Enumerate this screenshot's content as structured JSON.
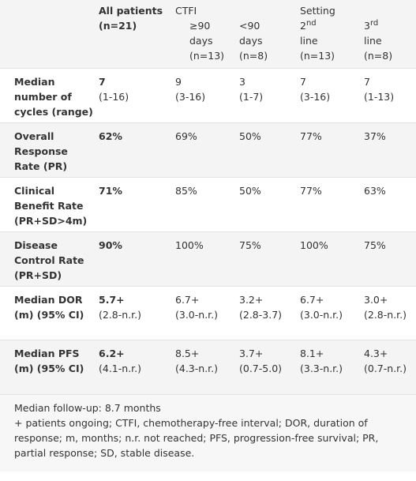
{
  "table": {
    "header": {
      "all": {
        "title": "All patients",
        "n": "(n=21)"
      },
      "groups": [
        "CTFI",
        "Setting"
      ],
      "subs": [
        {
          "lines": [
            "≥90",
            "days",
            "(n=13)"
          ]
        },
        {
          "lines": [
            "<90",
            "days",
            "(n=8)"
          ]
        },
        {
          "base": "2",
          "sup": "nd",
          "lines": [
            "line",
            "(n=13)"
          ]
        },
        {
          "base": "3",
          "sup": "rd",
          "lines": [
            "line",
            "(n=8)"
          ]
        }
      ]
    },
    "rows": [
      {
        "label": "Median number of cycles (range)",
        "cells": [
          [
            "7",
            "(1-16)"
          ],
          [
            "9",
            "(3-16)"
          ],
          [
            "3",
            "(1-7)"
          ],
          [
            "7",
            "(3-16)"
          ],
          [
            "7",
            "(1-13)"
          ]
        ]
      },
      {
        "label": "Overall Response Rate (PR)",
        "cells": [
          [
            "62%"
          ],
          [
            "69%"
          ],
          [
            "50%"
          ],
          [
            "77%"
          ],
          [
            "37%"
          ]
        ]
      },
      {
        "label": "Clinical Benefit Rate (PR+SD>4m)",
        "cells": [
          [
            "71%"
          ],
          [
            "85%"
          ],
          [
            "50%"
          ],
          [
            "77%"
          ],
          [
            "63%"
          ]
        ]
      },
      {
        "label": "Disease Control Rate (PR+SD)",
        "cells": [
          [
            "90%"
          ],
          [
            "100%"
          ],
          [
            "75%"
          ],
          [
            "100%"
          ],
          [
            "75%"
          ]
        ]
      },
      {
        "label": "Median DOR (m) (95% CI)",
        "cells": [
          [
            "5.7+",
            "(2.8-n.r.)"
          ],
          [
            "6.7+",
            "(3.0-n.r.)"
          ],
          [
            "3.2+",
            "(2.8-3.7)"
          ],
          [
            "6.7+",
            "(3.0-n.r.)"
          ],
          [
            "3.0+",
            "(2.8-n.r.)"
          ]
        ]
      },
      {
        "label": "Median PFS (m) (95% CI)",
        "cells": [
          [
            "6.2+",
            "(4.1-n.r.)"
          ],
          [
            "8.5+",
            "(4.3-n.r.)"
          ],
          [
            "3.7+",
            "(0.7-5.0)"
          ],
          [
            "8.1+",
            "(3.3-n.r.)"
          ],
          [
            "4.3+",
            "(0.7-n.r.)"
          ]
        ]
      }
    ]
  },
  "footer": {
    "followup": "Median follow-up: 8.7 months",
    "note": "+ patients ongoing; CTFI, chemotherapy-free interval; DOR, duration of response; m, months; n.r. not reached; PFS, progression-free survival; PR, partial response; SD, stable disease."
  }
}
